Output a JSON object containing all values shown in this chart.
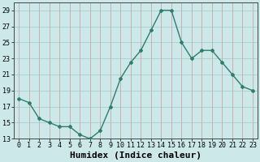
{
  "x": [
    0,
    1,
    2,
    3,
    4,
    5,
    6,
    7,
    8,
    9,
    10,
    11,
    12,
    13,
    14,
    15,
    16,
    17,
    18,
    19,
    20,
    21,
    22,
    23
  ],
  "y": [
    18,
    17.5,
    15.5,
    15,
    14.5,
    14.5,
    13.5,
    13,
    14,
    17,
    20.5,
    22.5,
    24,
    26.5,
    29,
    29,
    25,
    23,
    24,
    24,
    22.5,
    21,
    19.5,
    19
  ],
  "line_color": "#2e7d6e",
  "marker": "D",
  "marker_size": 2,
  "line_width": 1.0,
  "xlabel": "Humidex (Indice chaleur)",
  "ylim": [
    13,
    30
  ],
  "yticks": [
    13,
    15,
    17,
    19,
    21,
    23,
    25,
    27,
    29
  ],
  "xticks": [
    0,
    1,
    2,
    3,
    4,
    5,
    6,
    7,
    8,
    9,
    10,
    11,
    12,
    13,
    14,
    15,
    16,
    17,
    18,
    19,
    20,
    21,
    22,
    23
  ],
  "background_color": "#cce8e8",
  "hgrid_color": "#a8cece",
  "vgrid_color": "#c8a8a8",
  "tick_fontsize": 6,
  "xlabel_fontsize": 8
}
